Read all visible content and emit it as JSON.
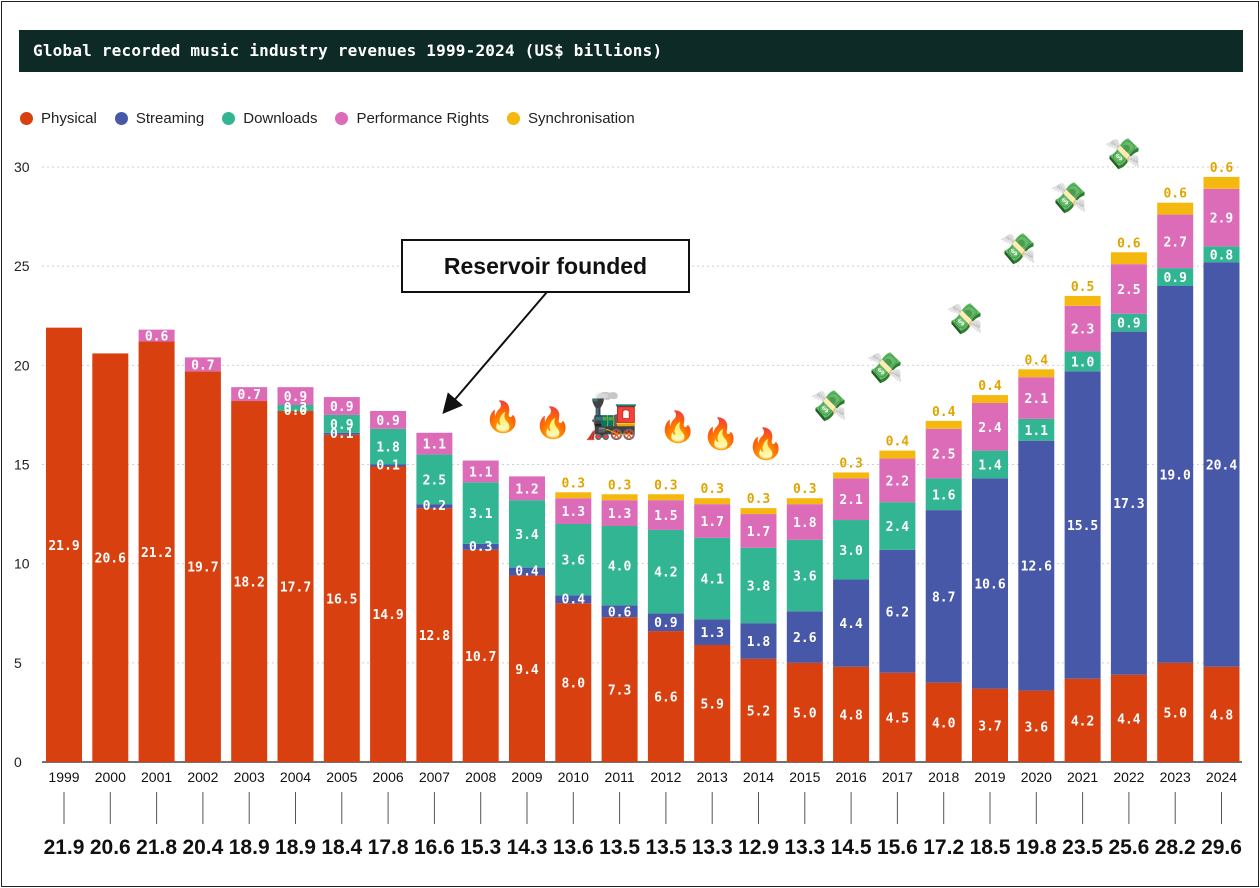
{
  "chart_data": {
    "type": "bar",
    "stacked": true,
    "title": "Global recorded music industry revenues 1999-2024 (US$ billions)",
    "ylim": [
      0,
      30
    ],
    "yticks": [
      0,
      5,
      10,
      15,
      20,
      25,
      30
    ],
    "categories": [
      "1999",
      "2000",
      "2001",
      "2002",
      "2003",
      "2004",
      "2005",
      "2006",
      "2007",
      "2008",
      "2009",
      "2010",
      "2011",
      "2012",
      "2013",
      "2014",
      "2015",
      "2016",
      "2017",
      "2018",
      "2019",
      "2020",
      "2021",
      "2022",
      "2023",
      "2024"
    ],
    "series": [
      {
        "name": "Physical",
        "color": "#d9400f",
        "values": [
          21.9,
          20.6,
          21.2,
          19.7,
          18.2,
          17.7,
          16.5,
          14.9,
          12.8,
          10.7,
          9.4,
          8.0,
          7.3,
          6.6,
          5.9,
          5.2,
          5.0,
          4.8,
          4.5,
          4.0,
          3.7,
          3.6,
          4.2,
          4.4,
          5.0,
          4.8
        ]
      },
      {
        "name": "Streaming",
        "color": "#4858a8",
        "values": [
          0,
          0,
          0,
          0,
          0,
          0,
          0.1,
          0.1,
          0.2,
          0.3,
          0.4,
          0.4,
          0.6,
          0.9,
          1.3,
          1.8,
          2.6,
          4.4,
          6.2,
          8.7,
          10.6,
          12.6,
          15.5,
          17.3,
          19.0,
          20.4
        ]
      },
      {
        "name": "Downloads",
        "color": "#32b592",
        "values": [
          0,
          0,
          0,
          0,
          0,
          0.3,
          0.9,
          1.8,
          2.5,
          3.1,
          3.4,
          3.6,
          4.0,
          4.2,
          4.1,
          3.8,
          3.6,
          3.0,
          2.4,
          1.6,
          1.4,
          1.1,
          1.0,
          0.9,
          0.9,
          0.8
        ]
      },
      {
        "name": "Performance Rights",
        "color": "#dc6cb8",
        "values": [
          0,
          0,
          0.6,
          0.7,
          0.7,
          0.9,
          0.9,
          0.9,
          1.1,
          1.1,
          1.2,
          1.3,
          1.3,
          1.5,
          1.7,
          1.7,
          1.8,
          2.1,
          2.2,
          2.5,
          2.4,
          2.1,
          2.3,
          2.5,
          2.7,
          2.9
        ]
      },
      {
        "name": "Synchronisation",
        "color": "#f5b80f",
        "values": [
          0,
          0,
          0,
          0,
          0,
          0,
          0,
          0,
          0,
          0,
          0,
          0.3,
          0.3,
          0.3,
          0.3,
          0.3,
          0.3,
          0.3,
          0.4,
          0.4,
          0.4,
          0.4,
          0.5,
          0.6,
          0.6,
          0.6
        ]
      }
    ],
    "segment_labels": {
      "Physical": [
        "21.9",
        "20.6",
        "21.2",
        "19.7",
        "18.2",
        "17.7",
        "16.5",
        "14.9",
        "12.8",
        "10.7",
        "9.4",
        "8.0",
        "7.3",
        "6.6",
        "5.9",
        "5.2",
        "5.0",
        "4.8",
        "4.5",
        "4.0",
        "3.7",
        "3.6",
        "4.2",
        "4.4",
        "5.0",
        "4.8"
      ],
      "Streaming": [
        "",
        "",
        "",
        "",
        "",
        "0.0",
        "0.1",
        "0.1",
        "0.2",
        "0.3",
        "0.4",
        "0.4",
        "0.6",
        "0.9",
        "1.3",
        "1.8",
        "2.6",
        "4.4",
        "6.2",
        "8.7",
        "10.6",
        "12.6",
        "15.5",
        "17.3",
        "19.0",
        "20.4"
      ],
      "Downloads": [
        "",
        "",
        "",
        "",
        "",
        "0.3",
        "0.9",
        "1.8",
        "2.5",
        "3.1",
        "3.4",
        "3.6",
        "4.0",
        "4.2",
        "4.1",
        "3.8",
        "3.6",
        "3.0",
        "2.4",
        "1.6",
        "1.4",
        "1.1",
        "1.0",
        "0.9",
        "0.9",
        "0.8"
      ],
      "Performance Rights": [
        "",
        "",
        "0.6",
        "0.7",
        "0.7",
        "0.9",
        "0.9",
        "0.9",
        "1.1",
        "1.1",
        "1.2",
        "1.3",
        "1.3",
        "1.5",
        "1.7",
        "1.7",
        "1.8",
        "2.1",
        "2.2",
        "2.5",
        "2.4",
        "2.1",
        "2.3",
        "2.5",
        "2.7",
        "2.9"
      ],
      "Synchronisation": [
        "",
        "",
        "",
        "",
        "",
        "",
        "",
        "",
        "",
        "",
        "",
        "0.3",
        "0.3",
        "0.3",
        "0.3",
        "0.3",
        "0.3",
        "0.3",
        "0.4",
        "0.4",
        "0.4",
        "0.4",
        "0.5",
        "0.6",
        "0.6",
        "0.6"
      ]
    },
    "totals": [
      "21.9",
      "20.6",
      "21.8",
      "20.4",
      "18.9",
      "18.9",
      "18.4",
      "17.8",
      "16.6",
      "15.3",
      "14.3",
      "13.6",
      "13.5",
      "13.5",
      "13.3",
      "12.9",
      "13.3",
      "14.5",
      "15.6",
      "17.2",
      "18.5",
      "19.8",
      "23.5",
      "25.6",
      "28.2",
      "29.6"
    ],
    "annotation": {
      "text": "Reservoir founded",
      "points_to": "2007"
    }
  },
  "legend": [
    {
      "name": "Physical",
      "color": "#d9400f"
    },
    {
      "name": "Streaming",
      "color": "#4858a8"
    },
    {
      "name": "Downloads",
      "color": "#32b592"
    },
    {
      "name": "Performance Rights",
      "color": "#dc6cb8"
    },
    {
      "name": "Synchronisation",
      "color": "#f5b80f"
    }
  ],
  "decorations": {
    "fire_icon": "🔥",
    "train_icon": "🚂",
    "money_icon": "💸"
  }
}
